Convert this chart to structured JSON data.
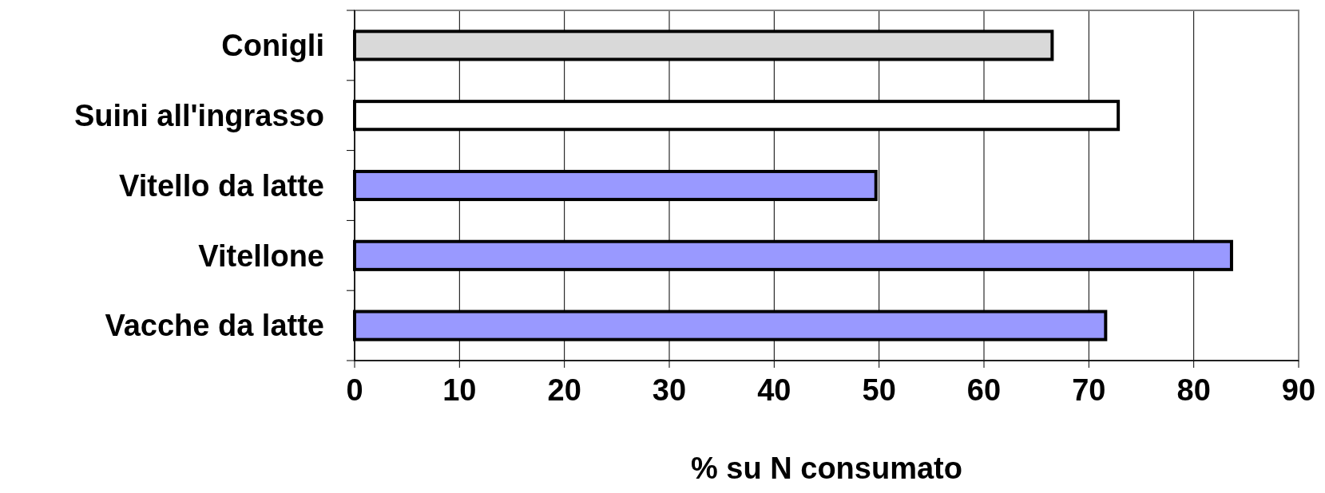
{
  "chart_data": {
    "type": "bar",
    "orientation": "horizontal",
    "xlabel": "% su N consumato",
    "categories": [
      "Conigli",
      "Suini all'ingrasso",
      "Vitello da latte",
      "Vitellone",
      "Vacche da latte"
    ],
    "values": [
      66.5,
      72.8,
      49.7,
      83.6,
      71.6
    ],
    "colors": [
      "#d9d9d9",
      "#ffffff",
      "#9999ff",
      "#9999ff",
      "#9999ff"
    ],
    "xlim": [
      0,
      90
    ],
    "xticks": [
      0,
      10,
      20,
      30,
      40,
      50,
      60,
      70,
      80,
      90
    ],
    "grid": "x"
  }
}
